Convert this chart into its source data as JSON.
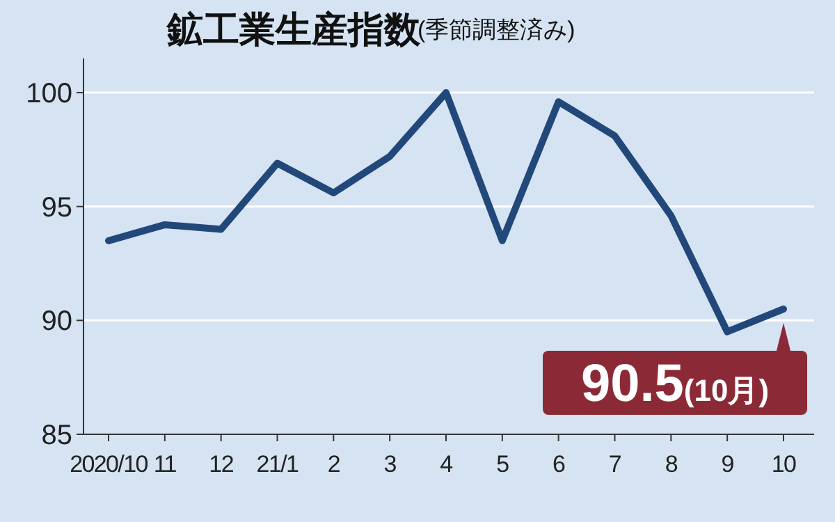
{
  "chart_data": {
    "type": "line",
    "title": "鉱工業生産指数",
    "subtitle": "(季節調整済み)",
    "categories": [
      "2020/10",
      "11",
      "12",
      "21/1",
      "2",
      "3",
      "4",
      "5",
      "6",
      "7",
      "8",
      "9",
      "10"
    ],
    "series": [
      {
        "color": "#22487a",
        "values": [
          93.5,
          94.2,
          94.0,
          96.9,
          95.6,
          97.2,
          100.0,
          93.5,
          99.6,
          98.1,
          94.6,
          89.5,
          90.5
        ]
      }
    ],
    "ylim": [
      85,
      101.5
    ],
    "yticks": [
      85,
      90,
      95,
      100
    ],
    "grid": "y",
    "line_style": "solid",
    "marker": "none",
    "annotations": [
      "90.5(10月)"
    ]
  }
}
